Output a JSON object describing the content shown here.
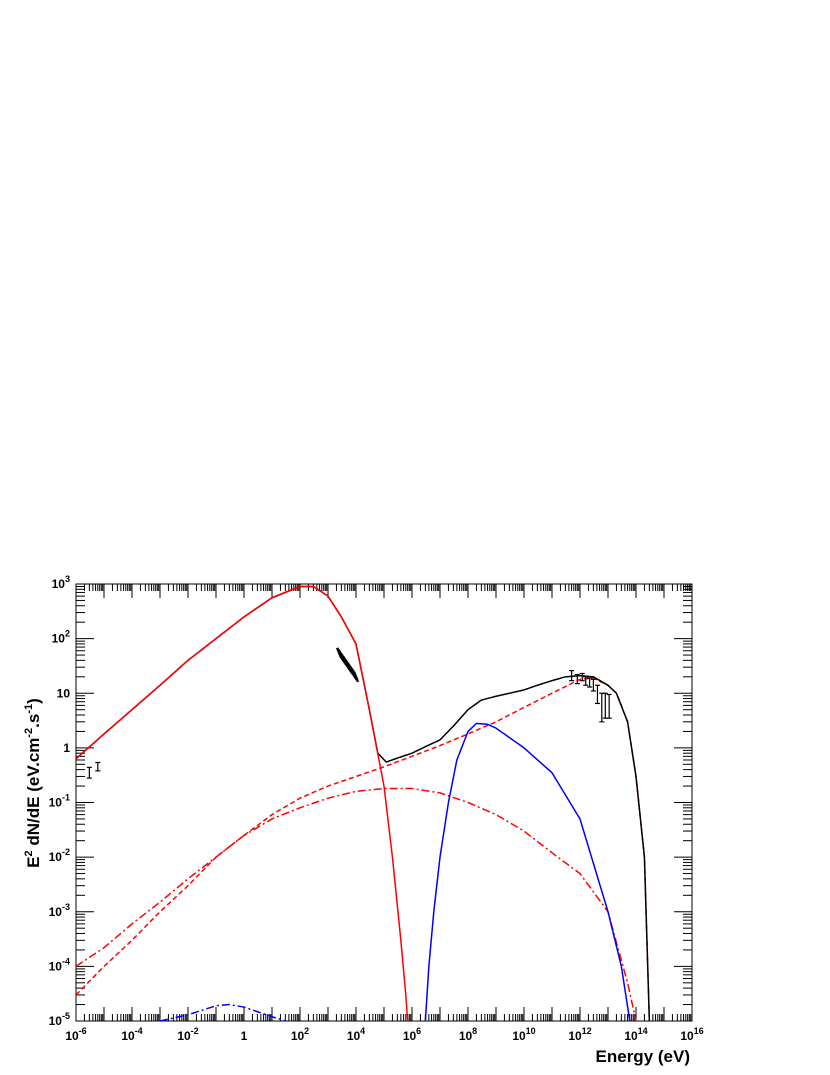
{
  "chart_data": {
    "type": "line",
    "xlabel": "Energy (eV)",
    "ylabel": {
      "prefix": "E",
      "prefix_sup": "2",
      "part1": " dN/dE (eV.cm",
      "sup1": "-2",
      "part2": ".s",
      "sup2": "-1",
      "part3": ")"
    },
    "xscale": "log",
    "yscale": "log",
    "xlim": [
      1e-06,
      1e+16
    ],
    "ylim": [
      1e-05,
      1000
    ],
    "x_ticks": [
      {
        "value": 1e-06,
        "base": "10",
        "exp": "-6"
      },
      {
        "value": 0.0001,
        "base": "10",
        "exp": "-4"
      },
      {
        "value": 0.01,
        "base": "10",
        "exp": "-2"
      },
      {
        "value": 1,
        "base": "1",
        "exp": ""
      },
      {
        "value": 100.0,
        "base": "10",
        "exp": "2"
      },
      {
        "value": 10000.0,
        "base": "10",
        "exp": "4"
      },
      {
        "value": 1000000.0,
        "base": "10",
        "exp": "6"
      },
      {
        "value": 100000000.0,
        "base": "10",
        "exp": "8"
      },
      {
        "value": 10000000000.0,
        "base": "10",
        "exp": "10"
      },
      {
        "value": 1000000000000.0,
        "base": "10",
        "exp": "12"
      },
      {
        "value": 100000000000000.0,
        "base": "10",
        "exp": "14"
      },
      {
        "value": 1e+16,
        "base": "10",
        "exp": "16"
      }
    ],
    "y_ticks": [
      {
        "value": 1e-05,
        "base": "10",
        "exp": "-5"
      },
      {
        "value": 0.0001,
        "base": "10",
        "exp": "-4"
      },
      {
        "value": 0.001,
        "base": "10",
        "exp": "-3"
      },
      {
        "value": 0.01,
        "base": "10",
        "exp": "-2"
      },
      {
        "value": 0.1,
        "base": "10",
        "exp": "-1"
      },
      {
        "value": 1,
        "base": "1",
        "exp": ""
      },
      {
        "value": 10,
        "base": "10",
        "exp": ""
      },
      {
        "value": 100,
        "base": "10",
        "exp": "2"
      },
      {
        "value": 1000,
        "base": "10",
        "exp": "3"
      }
    ],
    "grid": false,
    "series": [
      {
        "style": "solid",
        "color": "#000000",
        "points": [
          [
            1e-06,
            0.63
          ],
          [
            1e-05,
            1.8
          ],
          [
            0.0001,
            5.0
          ],
          [
            0.001,
            14
          ],
          [
            0.01,
            40
          ],
          [
            0.1,
            100
          ],
          [
            1,
            250
          ],
          [
            10,
            560
          ],
          [
            100,
            900
          ],
          [
            300,
            900
          ],
          [
            1000.0,
            600
          ],
          [
            3000.0,
            250
          ],
          [
            10000.0,
            80
          ],
          [
            30000.0,
            5
          ],
          [
            60000.0,
            0.8
          ],
          [
            120000.0,
            0.55
          ],
          [
            300000.0,
            0.65
          ],
          [
            1000000.0,
            0.8
          ],
          [
            3000000.0,
            1.05
          ],
          [
            10000000.0,
            1.4
          ],
          [
            30000000.0,
            2.5
          ],
          [
            100000000.0,
            5
          ],
          [
            300000000.0,
            7.5
          ],
          [
            1000000000.0,
            8.8
          ],
          [
            3000000000.0,
            10
          ],
          [
            10000000000.0,
            11.5
          ],
          [
            30000000000.0,
            14
          ],
          [
            100000000000.0,
            17
          ],
          [
            300000000000.0,
            20
          ],
          [
            1000000000000.0,
            21
          ],
          [
            3000000000000.0,
            20
          ],
          [
            10000000000000.0,
            14
          ],
          [
            20000000000000.0,
            10
          ],
          [
            50000000000000.0,
            3
          ],
          [
            100000000000000.0,
            0.3
          ],
          [
            200000000000000.0,
            0.01
          ],
          [
            300000000000000.0,
            1e-05
          ]
        ]
      },
      {
        "style": "solid",
        "color": "#ff0000",
        "points": [
          [
            1e-06,
            0.63
          ],
          [
            1e-05,
            1.8
          ],
          [
            0.0001,
            5.0
          ],
          [
            0.001,
            14
          ],
          [
            0.01,
            40
          ],
          [
            0.1,
            100
          ],
          [
            1,
            250
          ],
          [
            10,
            560
          ],
          [
            100,
            900
          ],
          [
            300,
            900
          ],
          [
            1000.0,
            600
          ],
          [
            3000.0,
            250
          ],
          [
            10000.0,
            80
          ],
          [
            30000.0,
            5
          ],
          [
            100000.0,
            0.2
          ],
          [
            200000.0,
            0.01
          ],
          [
            400000.0,
            0.0003
          ],
          [
            600000.0,
            3e-05
          ],
          [
            700000.0,
            1e-05
          ]
        ]
      },
      {
        "style": "dashed",
        "color": "#ff0000",
        "points": [
          [
            1e-06,
            3e-05
          ],
          [
            1e-05,
            0.0001
          ],
          [
            0.0001,
            0.0003
          ],
          [
            0.001,
            0.001
          ],
          [
            0.01,
            0.003
          ],
          [
            0.1,
            0.01
          ],
          [
            1,
            0.025
          ],
          [
            10,
            0.06
          ],
          [
            100,
            0.12
          ],
          [
            1000.0,
            0.2
          ],
          [
            10000.0,
            0.3
          ],
          [
            100000.0,
            0.45
          ],
          [
            1000000.0,
            0.7
          ],
          [
            10000000.0,
            1.1
          ],
          [
            100000000.0,
            1.8
          ],
          [
            1000000000.0,
            3
          ],
          [
            10000000000.0,
            5.5
          ],
          [
            100000000000.0,
            10
          ],
          [
            1000000000000.0,
            18
          ],
          [
            3000000000000.0,
            19
          ],
          [
            10000000000000.0,
            14
          ],
          [
            20000000000000.0,
            10
          ],
          [
            50000000000000.0,
            3
          ],
          [
            100000000000000.0,
            0.3
          ],
          [
            200000000000000.0,
            0.01
          ],
          [
            300000000000000.0,
            1e-05
          ]
        ]
      },
      {
        "style": "dashdot",
        "color": "#ff0000",
        "points": [
          [
            1e-06,
            0.0001
          ],
          [
            1e-05,
            0.00022
          ],
          [
            0.0001,
            0.0006
          ],
          [
            0.001,
            0.0015
          ],
          [
            0.01,
            0.004
          ],
          [
            0.1,
            0.01
          ],
          [
            1,
            0.025
          ],
          [
            10,
            0.05
          ],
          [
            100,
            0.08
          ],
          [
            1000.0,
            0.12
          ],
          [
            10000.0,
            0.16
          ],
          [
            100000.0,
            0.18
          ],
          [
            1000000.0,
            0.18
          ],
          [
            10000000.0,
            0.15
          ],
          [
            100000000.0,
            0.1
          ],
          [
            1000000000.0,
            0.06
          ],
          [
            10000000000.0,
            0.03
          ],
          [
            100000000000.0,
            0.012
          ],
          [
            1000000000000.0,
            0.005
          ],
          [
            10000000000000.0,
            0.001
          ],
          [
            50000000000000.0,
            5e-05
          ],
          [
            100000000000000.0,
            1e-05
          ]
        ]
      },
      {
        "style": "solid",
        "color": "#0000ff",
        "points": [
          [
            3000000.0,
            1e-05
          ],
          [
            4000000.0,
            0.0001
          ],
          [
            6000000.0,
            0.001
          ],
          [
            10000000.0,
            0.01
          ],
          [
            20000000.0,
            0.1
          ],
          [
            40000000.0,
            0.6
          ],
          [
            100000000.0,
            2
          ],
          [
            200000000.0,
            2.8
          ],
          [
            500000000.0,
            2.7
          ],
          [
            1000000000.0,
            2.3
          ],
          [
            10000000000.0,
            1.0
          ],
          [
            100000000000.0,
            0.35
          ],
          [
            1000000000000.0,
            0.05
          ],
          [
            10000000000000.0,
            0.001
          ],
          [
            30000000000000.0,
            0.0001
          ],
          [
            60000000000000.0,
            1e-05
          ]
        ]
      },
      {
        "style": "dashdot",
        "color": "#0000ff",
        "points": [
          [
            0.001,
            1e-05
          ],
          [
            0.01,
            1.3e-05
          ],
          [
            0.1,
            1.9e-05
          ],
          [
            0.3,
            2e-05
          ],
          [
            1,
            1.8e-05
          ],
          [
            10,
            1.2e-05
          ],
          [
            30,
            1e-05
          ]
        ]
      }
    ],
    "data_points": [
      {
        "x": 3e-06,
        "y": 0.35,
        "ylo": 0.28,
        "yhi": 0.44
      },
      {
        "x": 6e-06,
        "y": 0.45,
        "ylo": 0.38,
        "yhi": 0.54
      },
      {
        "x": 500000000000.0,
        "y": 22,
        "ylo": 17,
        "yhi": 26
      },
      {
        "x": 800000000000.0,
        "y": 18,
        "ylo": 15,
        "yhi": 22
      },
      {
        "x": 1200000000000.0,
        "y": 20,
        "ylo": 17,
        "yhi": 23
      },
      {
        "x": 1600000000000.0,
        "y": 17,
        "ylo": 14,
        "yhi": 20
      },
      {
        "x": 2200000000000.0,
        "y": 16,
        "ylo": 13,
        "yhi": 19
      },
      {
        "x": 3000000000000.0,
        "y": 15,
        "ylo": 11,
        "yhi": 18
      },
      {
        "x": 4200000000000.0,
        "y": 10,
        "ylo": 6.5,
        "yhi": 14
      },
      {
        "x": 6000000000000.0,
        "y": 5.5,
        "ylo": 3,
        "yhi": 10
      },
      {
        "x": 8000000000000.0,
        "y": 6,
        "ylo": 3.5,
        "yhi": 10
      },
      {
        "x": 11000000000000.0,
        "y": 6,
        "ylo": 3.5,
        "yhi": 9.5
      }
    ],
    "xray_bowtie": {
      "x_start": 2500.0,
      "x_end": 10000.0,
      "y_start": 55,
      "y_end": 20
    }
  }
}
